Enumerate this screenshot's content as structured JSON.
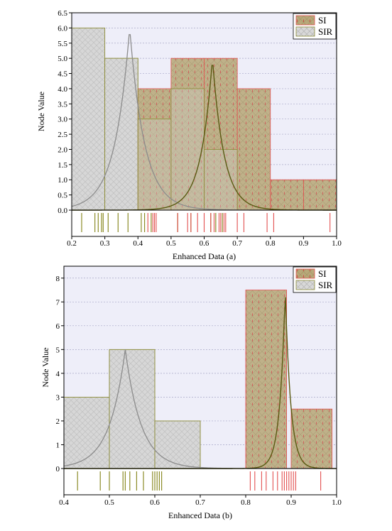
{
  "colors": {
    "plot_bg": "#eeeef9",
    "si_fill": "#b8a87a",
    "si_edge": "#e25050",
    "si_pattern_dash": "#d04040",
    "sir_fill": "#d8d8d8",
    "sir_edge": "#8c8c38",
    "sir_hatch": "#b4b4b4",
    "si_curve": "#5a5a12",
    "sir_curve": "#8c8c8c",
    "rug_si": "#e25050",
    "rug_sir": "#8c8c28"
  },
  "chart_data": [
    {
      "type": "bar",
      "xlabel": "Enhanced Data (a)",
      "ylabel": "Node Value",
      "xlim": [
        0.2,
        1.0
      ],
      "ylim": [
        0,
        6.5
      ],
      "xticks": [
        "0.2",
        "0.3",
        "0.4",
        "0.5",
        "0.6",
        "0.7",
        "0.8",
        "0.9",
        "1.0"
      ],
      "yticks": [
        "0.0",
        "0.5",
        "1.0",
        "1.5",
        "2.0",
        "2.5",
        "3.0",
        "3.5",
        "4.0",
        "4.5",
        "5.0",
        "5.5",
        "6.0",
        "6.5"
      ],
      "grid": "horizontal dotted",
      "legend_position": "top-right",
      "legend": [
        "SI",
        "SIR"
      ],
      "series": [
        {
          "name": "SI",
          "bins": [
            [
              0.4,
              0.5,
              4
            ],
            [
              0.5,
              0.6,
              5
            ],
            [
              0.6,
              0.7,
              5
            ],
            [
              0.7,
              0.8,
              4
            ],
            [
              0.8,
              0.9,
              1
            ],
            [
              0.9,
              1.0,
              1
            ]
          ],
          "curve": {
            "center": 0.625,
            "peak": 5,
            "scale": 0.035
          },
          "rug": [
            0.43,
            0.445,
            0.45,
            0.455,
            0.52,
            0.55,
            0.56,
            0.58,
            0.6,
            0.62,
            0.63,
            0.645,
            0.65,
            0.66,
            0.665,
            0.7,
            0.72,
            0.79,
            0.81,
            0.98
          ]
        },
        {
          "name": "SIR",
          "bins": [
            [
              0.2,
              0.3,
              6
            ],
            [
              0.3,
              0.4,
              5
            ],
            [
              0.4,
              0.5,
              3
            ],
            [
              0.5,
              0.6,
              4
            ],
            [
              0.6,
              0.7,
              2
            ]
          ],
          "curve": {
            "center": 0.375,
            "peak": 6,
            "scale": 0.045
          },
          "rug": [
            0.23,
            0.27,
            0.28,
            0.29,
            0.295,
            0.31,
            0.34,
            0.37,
            0.41,
            0.42,
            0.44,
            0.52,
            0.56,
            0.62,
            0.635,
            0.655
          ]
        }
      ]
    },
    {
      "type": "bar",
      "xlabel": "Enhanced Data (b)",
      "ylabel": "Node Value",
      "xlim": [
        0.4,
        1.0
      ],
      "ylim": [
        0,
        8.5
      ],
      "xticks": [
        "0.4",
        "0.5",
        "0.6",
        "0.7",
        "0.8",
        "0.9",
        "1.0"
      ],
      "yticks": [
        "0",
        "1",
        "2",
        "3",
        "4",
        "5",
        "6",
        "7",
        "8"
      ],
      "grid": "horizontal dotted",
      "legend_position": "top-right",
      "legend": [
        "SI",
        "SIR"
      ],
      "series": [
        {
          "name": "SI",
          "bins": [
            [
              0.8,
              0.89,
              7.5
            ],
            [
              0.9,
              0.99,
              2.5
            ]
          ],
          "curve": {
            "center": 0.887,
            "peak": 7.5,
            "scale": 0.012
          },
          "rug": [
            0.81,
            0.82,
            0.835,
            0.845,
            0.86,
            0.87,
            0.88,
            0.885,
            0.89,
            0.895,
            0.9,
            0.905,
            0.91,
            0.965
          ]
        },
        {
          "name": "SIR",
          "bins": [
            [
              0.4,
              0.5,
              3
            ],
            [
              0.5,
              0.6,
              5
            ],
            [
              0.6,
              0.7,
              2
            ]
          ],
          "curve": {
            "center": 0.535,
            "peak": 5,
            "scale": 0.035
          },
          "rug": [
            0.43,
            0.48,
            0.5,
            0.53,
            0.535,
            0.545,
            0.56,
            0.575,
            0.595,
            0.6,
            0.605,
            0.61,
            0.615
          ]
        }
      ]
    }
  ]
}
